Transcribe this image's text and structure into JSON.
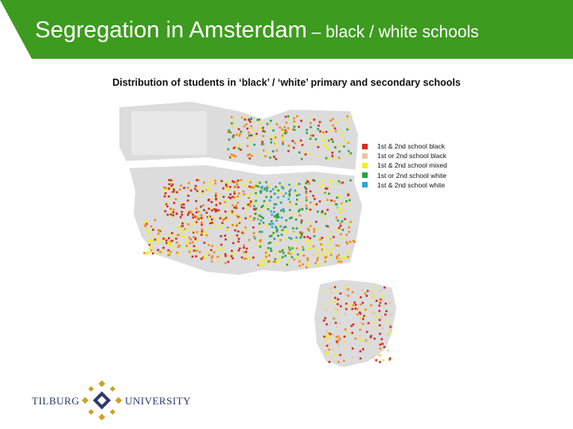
{
  "header": {
    "title_main": "Segregation in Amsterdam",
    "title_sub": " – black / white schools"
  },
  "subtitle": "Distribution of students in ‘black’ / ‘white’ primary and secondary schools",
  "legend": [
    {
      "label": "1st & 2nd school black",
      "color": "#d62b1f"
    },
    {
      "label": "1st or 2nd school black",
      "color": "#e8c7a0"
    },
    {
      "label": "1st & 2nd school mixed",
      "color": "#f2ee2a"
    },
    {
      "label": "1st or 2nd school white",
      "color": "#2aa34a"
    },
    {
      "label": "1st & 2nd school white",
      "color": "#2fa6d8"
    }
  ],
  "logo": {
    "left_word": "TILBURG",
    "right_word": "UNIVERSITY"
  },
  "colors": {
    "header_green": "#3d9b1f",
    "map_gray": "#dcdcdc",
    "water": "#ffffff"
  }
}
